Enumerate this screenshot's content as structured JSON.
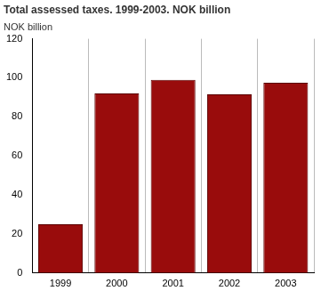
{
  "chart_data": {
    "type": "bar",
    "title": "Total assessed taxes. 1999-2003. NOK billion",
    "ylabel": "NOK billion",
    "categories": [
      "1999",
      "2000",
      "2001",
      "2002",
      "2003"
    ],
    "values": [
      25,
      92,
      99,
      91.5,
      97.5
    ],
    "color": "#990c0c",
    "ylim": [
      0,
      120
    ],
    "yticks": [
      0,
      20,
      40,
      60,
      80,
      100,
      120
    ],
    "grid": true
  }
}
